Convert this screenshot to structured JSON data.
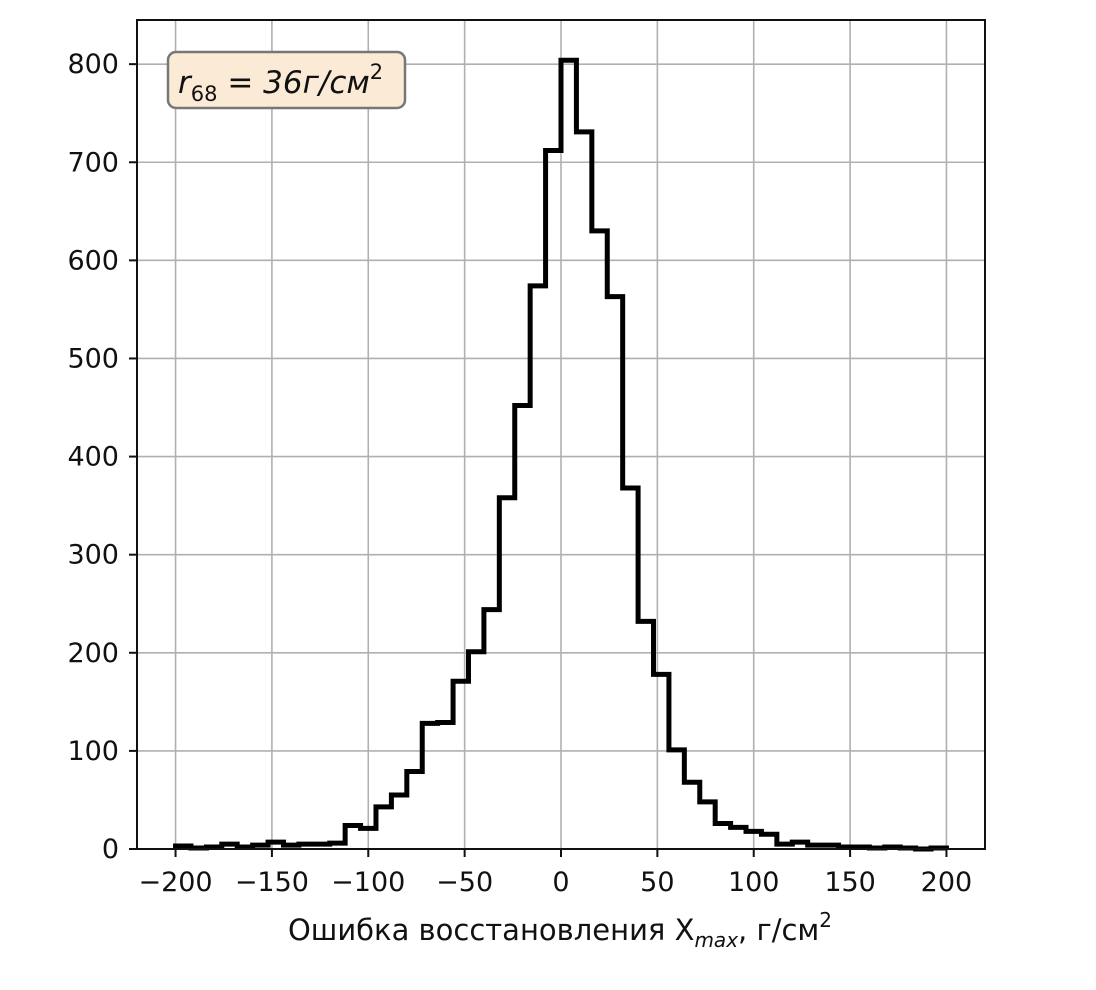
{
  "chart_data": {
    "type": "histogram",
    "xlabel": "Ошибка восстановления X",
    "xlabel_sub": "max",
    "xlabel_units": ", г/см",
    "xlabel_units_sup": "2",
    "ylabel": "",
    "xlim": [
      -220,
      220
    ],
    "ylim": [
      0,
      845
    ],
    "xticks": [
      -200,
      -150,
      -100,
      -50,
      0,
      50,
      100,
      150,
      200
    ],
    "xtick_labels": [
      "−200",
      "−150",
      "−100",
      "−50",
      "0",
      "50",
      "100",
      "150",
      "200"
    ],
    "yticks": [
      0,
      100,
      200,
      300,
      400,
      500,
      600,
      700,
      800
    ],
    "ytick_labels": [
      "0",
      "100",
      "200",
      "300",
      "400",
      "500",
      "600",
      "700",
      "800"
    ],
    "grid": true,
    "bin_edges": [
      -200,
      -192,
      -184,
      -176,
      -168,
      -160,
      -152,
      -144,
      -136,
      -128,
      -120,
      -112,
      -104,
      -96,
      -88,
      -80,
      -72,
      -64,
      -56,
      -48,
      -40,
      -32,
      -24,
      -16,
      -8,
      0,
      8,
      16,
      24,
      32,
      40,
      48,
      56,
      64,
      72,
      80,
      88,
      96,
      104,
      112,
      120,
      128,
      136,
      144,
      152,
      160,
      168,
      176,
      184,
      192,
      200
    ],
    "counts": [
      3,
      1,
      2,
      5,
      2,
      4,
      7,
      4,
      5,
      5,
      6,
      24,
      21,
      43,
      55,
      79,
      128,
      129,
      171,
      201,
      244,
      358,
      452,
      574,
      712,
      804,
      731,
      630,
      563,
      368,
      232,
      178,
      101,
      68,
      48,
      26,
      22,
      18,
      15,
      5,
      7,
      4,
      4,
      2,
      2,
      1,
      2,
      1,
      0,
      1
    ],
    "line_color": "#000000",
    "annotation": {
      "text_main": "r",
      "text_sub": "68",
      "text_eq": " = 36г/см",
      "text_sup": "2",
      "box_fill": "#fbebd6",
      "box_border": "#777777",
      "placement": "top-left"
    }
  }
}
